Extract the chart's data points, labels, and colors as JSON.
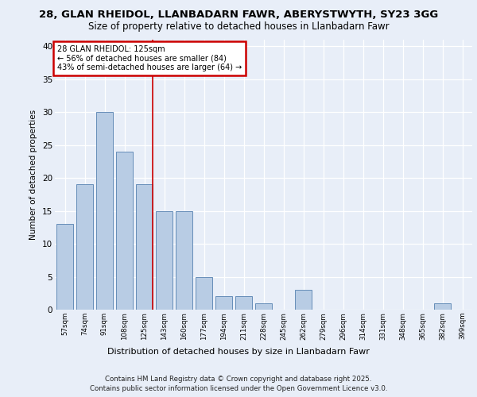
{
  "title1": "28, GLAN RHEIDOL, LLANBADARN FAWR, ABERYSTWYTH, SY23 3GG",
  "title2": "Size of property relative to detached houses in Llanbadarn Fawr",
  "xlabel": "Distribution of detached houses by size in Llanbadarn Fawr",
  "ylabel": "Number of detached properties",
  "categories": [
    "57sqm",
    "74sqm",
    "91sqm",
    "108sqm",
    "125sqm",
    "143sqm",
    "160sqm",
    "177sqm",
    "194sqm",
    "211sqm",
    "228sqm",
    "245sqm",
    "262sqm",
    "279sqm",
    "296sqm",
    "314sqm",
    "331sqm",
    "348sqm",
    "365sqm",
    "382sqm",
    "399sqm"
  ],
  "values": [
    13,
    19,
    30,
    24,
    19,
    15,
    15,
    5,
    2,
    2,
    1,
    0,
    3,
    0,
    0,
    0,
    0,
    0,
    0,
    1,
    0
  ],
  "bar_color": "#b8cce4",
  "bar_edge_color": "#5580b0",
  "redline_index": 4,
  "annotation_title": "28 GLAN RHEIDOL: 125sqm",
  "annotation_line1": "← 56% of detached houses are smaller (84)",
  "annotation_line2": "43% of semi-detached houses are larger (64) →",
  "annotation_box_color": "#ffffff",
  "annotation_box_edge": "#cc0000",
  "ylim": [
    0,
    41
  ],
  "yticks": [
    0,
    5,
    10,
    15,
    20,
    25,
    30,
    35,
    40
  ],
  "footnote1": "Contains HM Land Registry data © Crown copyright and database right 2025.",
  "footnote2": "Contains public sector information licensed under the Open Government Licence v3.0.",
  "bg_color": "#e8eef8",
  "plot_bg_color": "#e8eef8"
}
